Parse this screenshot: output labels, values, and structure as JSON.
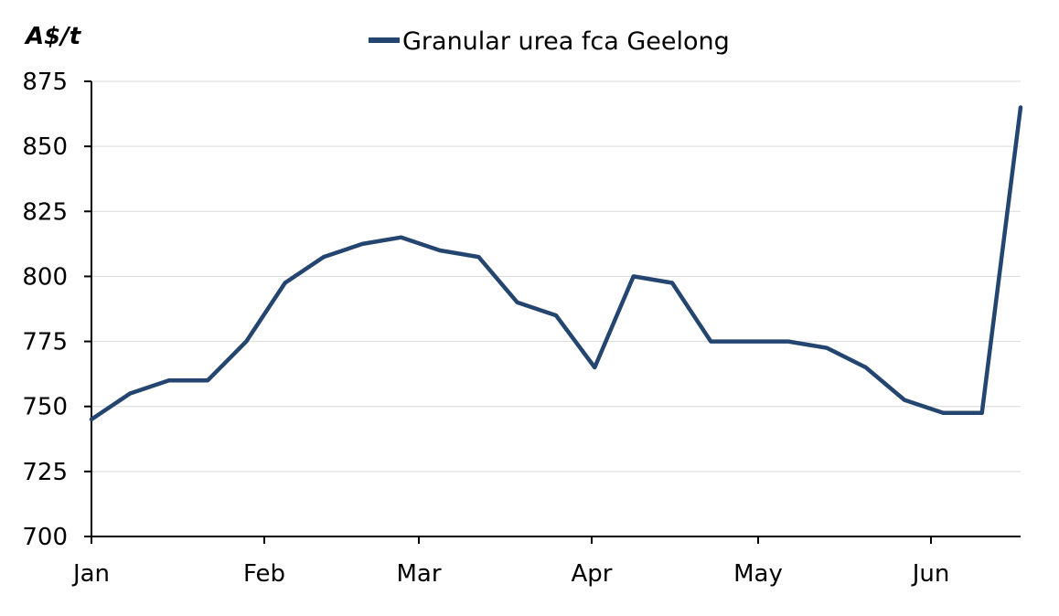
{
  "chart_data": {
    "type": "line",
    "ylabel": "A$/t",
    "ylim": [
      700,
      875
    ],
    "yticks": [
      "700",
      "725",
      "750",
      "775",
      "800",
      "825",
      "850",
      "875"
    ],
    "xticks": [
      "Jan",
      "Feb",
      "Mar",
      "Apr",
      "May",
      "Jun"
    ],
    "grid": true,
    "legend_position": "top-center",
    "series": [
      {
        "name": "Granular urea fca Geelong",
        "color": "#24456f",
        "values": [
          745,
          755,
          760,
          760,
          775,
          797.5,
          807.5,
          812.5,
          815,
          810,
          807.5,
          790,
          785,
          765,
          800,
          797.5,
          775,
          775,
          775,
          772.5,
          765,
          752.5,
          747.5,
          747.5,
          865
        ]
      }
    ]
  }
}
